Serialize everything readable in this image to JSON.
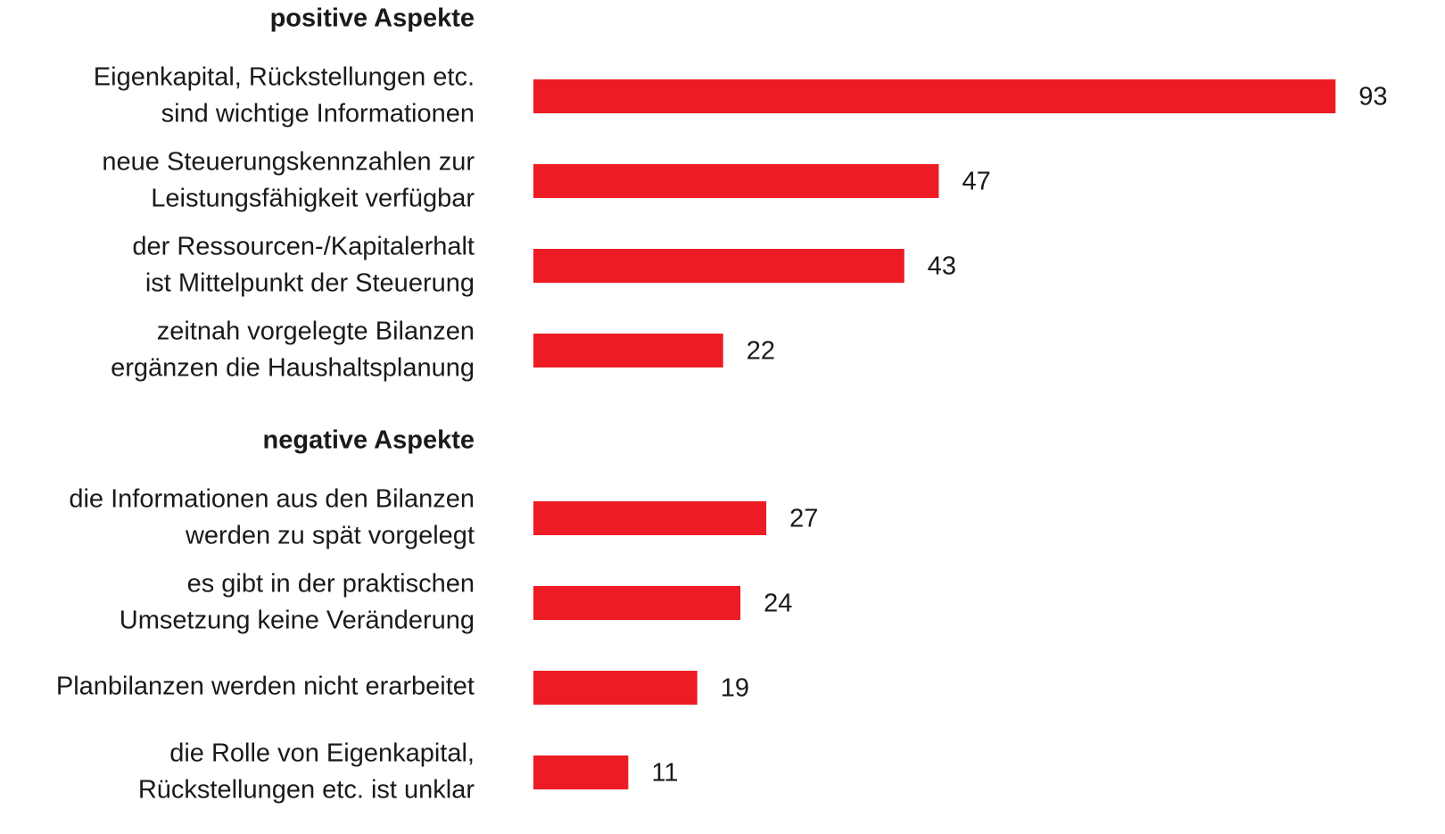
{
  "chart_data": {
    "type": "bar",
    "color": "#ed1c24",
    "groups": [
      {
        "title": "positive Aspekte",
        "categories": [
          [
            "Eigenkapital, Rückstellungen etc.",
            "sind wichtige Informationen"
          ],
          [
            "neue Steuerungskennzahlen zur",
            "Leistungsfähigkeit verfügbar"
          ],
          [
            "der Ressourcen-/Kapitalerhalt",
            "ist Mittelpunkt der Steuerung"
          ],
          [
            "zeitnah vorgelegte Bilanzen",
            "ergänzen die Haushaltsplanung"
          ]
        ],
        "values": [
          93,
          47,
          43,
          22
        ]
      },
      {
        "title": "negative Aspekte",
        "categories": [
          [
            "die Informationen aus den Bilanzen",
            "werden zu spät vorgelegt"
          ],
          [
            "es gibt in der praktischen",
            "Umsetzung keine Veränderung"
          ],
          [
            "Planbilanzen werden nicht erarbeitet"
          ],
          [
            "die Rolle von Eigenkapital,",
            "Rückstellungen etc. ist unklar"
          ]
        ],
        "values": [
          27,
          24,
          19,
          11
        ]
      }
    ]
  }
}
